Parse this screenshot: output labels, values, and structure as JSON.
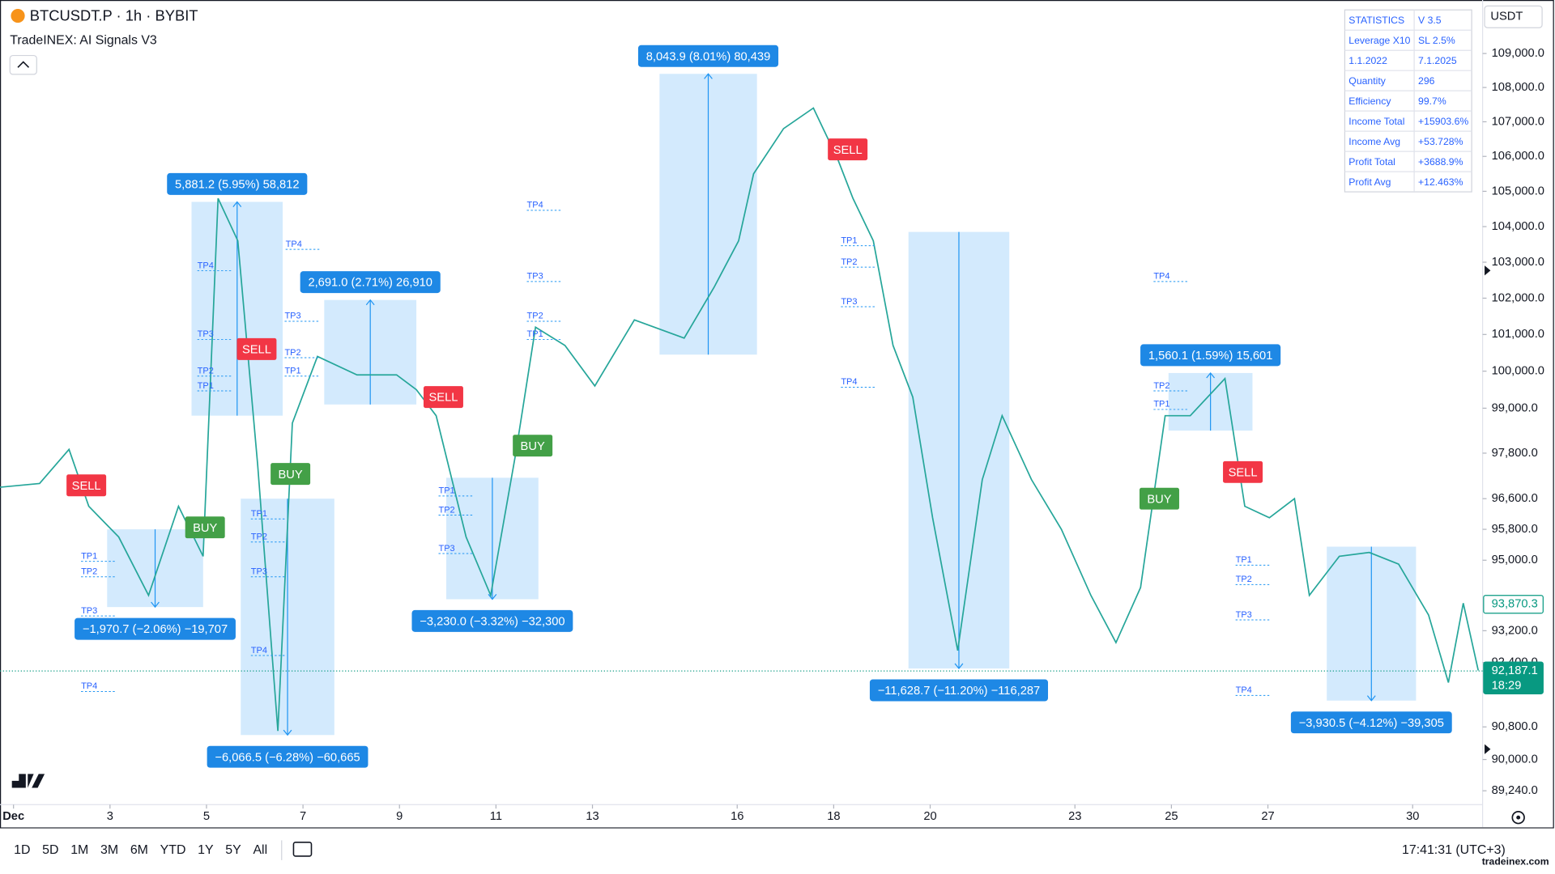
{
  "header": {
    "symbol": "BTCUSDT.P · 1h · BYBIT",
    "indicator": "TradeINEX: AI Signals V3",
    "currency": "USDT"
  },
  "stats": {
    "rows": [
      [
        "STATISTICS",
        "V 3.5"
      ],
      [
        "Leverage X10",
        "SL 2.5%"
      ],
      [
        "1.1.2022",
        "7.1.2025"
      ],
      [
        "Quantity",
        "296"
      ],
      [
        "Efficiency",
        "99.7%"
      ],
      [
        "Income Total",
        "+15903.6%"
      ],
      [
        "Income Avg",
        "+53.728%"
      ],
      [
        "Profit Total",
        "+3688.9%"
      ],
      [
        "Profit Avg",
        "+12.463%"
      ]
    ]
  },
  "toolbar": {
    "timeframes": [
      "1D",
      "5D",
      "1M",
      "3M",
      "6M",
      "YTD",
      "1Y",
      "5Y",
      "All"
    ],
    "clock": "17:41:31 (UTC+3)",
    "watermark": "tradeinex.com"
  },
  "chart_data": {
    "type": "line",
    "log_scale": true,
    "grid": false,
    "xlim": [
      0.72,
      31.45
    ],
    "ylim": [
      88905,
      110594
    ],
    "xticks": [
      {
        "value": 1,
        "label": "Dec"
      },
      3,
      5,
      7,
      9,
      11,
      13,
      16,
      18,
      20,
      23,
      25,
      27,
      30
    ],
    "yticks": [
      {
        "value": 109000,
        "label": "109,000.0"
      },
      {
        "value": 108000,
        "label": "108,000.0"
      },
      {
        "value": 107000,
        "label": "107,000.0"
      },
      {
        "value": 106000,
        "label": "106,000.0"
      },
      {
        "value": 105000,
        "label": "105,000.0"
      },
      {
        "value": 104000,
        "label": "104,000.0"
      },
      {
        "value": 103000,
        "label": "103,000.0"
      },
      {
        "value": 102000,
        "label": "102,000.0"
      },
      {
        "value": 101000,
        "label": "101,000.0"
      },
      {
        "value": 100000,
        "label": "100,000.0"
      },
      {
        "value": 99000,
        "label": "99,000.0"
      },
      {
        "value": 97800,
        "label": "97,800.0"
      },
      {
        "value": 96600,
        "label": "96,600.0"
      },
      {
        "value": 95800,
        "label": "95,800.0"
      },
      {
        "value": 95000,
        "label": "95,000.0"
      },
      {
        "value": 93200,
        "label": "93,200.0"
      },
      {
        "value": 92400,
        "label": "92,400.0"
      },
      {
        "value": 90800,
        "label": "90,800.0"
      },
      {
        "value": 90000,
        "label": "90,000.0"
      },
      {
        "value": 89240,
        "label": "89,240.0"
      }
    ],
    "x": [
      0.72,
      1.54,
      2.15,
      2.56,
      3.18,
      3.8,
      4.42,
      4.93,
      5.24,
      5.65,
      6.06,
      6.48,
      6.78,
      7.3,
      8.12,
      8.94,
      9.35,
      9.76,
      10.38,
      10.89,
      11.41,
      11.82,
      12.43,
      13.05,
      13.87,
      14.9,
      15.52,
      16.03,
      16.34,
      16.96,
      17.58,
      18.09,
      18.4,
      18.82,
      19.23,
      19.64,
      20.05,
      20.57,
      21.08,
      21.49,
      22.1,
      22.72,
      23.33,
      23.85,
      24.36,
      24.87,
      25.39,
      26.11,
      26.52,
      27.03,
      27.55,
      27.86,
      28.48,
      29.1,
      29.71,
      30.33,
      30.74,
      31.05,
      31.36
    ],
    "series": [
      {
        "color": "#26a69a",
        "values": [
          96900,
          97000,
          97900,
          96400,
          95600,
          94100,
          96400,
          95100,
          104800,
          103600,
          97500,
          90700,
          98600,
          100400,
          99900,
          99900,
          99500,
          98800,
          95600,
          94100,
          97800,
          101200,
          100700,
          99600,
          101400,
          100900,
          102300,
          103600,
          105500,
          106800,
          107400,
          105900,
          104800,
          103600,
          100700,
          99300,
          96100,
          92700,
          97100,
          98800,
          97100,
          95800,
          94100,
          92900,
          94300,
          98800,
          98800,
          99800,
          96400,
          96100,
          96600,
          94100,
          95100,
          95200,
          94900,
          93600,
          91900,
          93900,
          92200
        ]
      }
    ],
    "measures": [
      {
        "label": "5,881.2 (5.95%) 58,812",
        "x1": 4.69,
        "x2": 6.58,
        "from": 98800,
        "to": 104700
      },
      {
        "label": "2,691.0 (2.71%) 26,910",
        "x1": 7.44,
        "x2": 9.35,
        "from": 99100,
        "to": 101950
      },
      {
        "label": "8,043.9 (8.01%) 80,439",
        "x1": 14.39,
        "x2": 16.41,
        "from": 100450,
        "to": 108400
      },
      {
        "label": "1,560.1 (1.59%) 15,601",
        "x1": 24.94,
        "x2": 26.68,
        "from": 98400,
        "to": 99950
      },
      {
        "label": "−1,970.7 (−2.06%) −19,707",
        "x1": 2.94,
        "x2": 4.93,
        "from": 95800,
        "to": 93800
      },
      {
        "label": "−6,066.5 (−6.28%) −60,665",
        "x1": 5.71,
        "x2": 7.65,
        "from": 96600,
        "to": 90600
      },
      {
        "label": "−3,230.0 (−3.32%) −32,300",
        "x1": 9.97,
        "x2": 11.88,
        "from": 97150,
        "to": 94000
      },
      {
        "label": "−11,628.7 (−11.20%) −116,287",
        "x1": 19.55,
        "x2": 21.64,
        "from": 103850,
        "to": 92250
      },
      {
        "label": "−3,930.5 (−4.12%) −39,305",
        "x1": 28.22,
        "x2": 30.07,
        "from": 95350,
        "to": 91450
      }
    ],
    "signals": [
      {
        "label": "SELL",
        "x": 2.51,
        "price": 96950,
        "color": "#f23645"
      },
      {
        "label": "BUY",
        "x": 4.97,
        "price": 95850,
        "color": "#43a047"
      },
      {
        "label": "SELL",
        "x": 6.04,
        "price": 100600,
        "color": "#f23645"
      },
      {
        "label": "BUY",
        "x": 6.74,
        "price": 97250,
        "color": "#43a047"
      },
      {
        "label": "SELL",
        "x": 9.91,
        "price": 99300,
        "color": "#f23645"
      },
      {
        "label": "BUY",
        "x": 11.76,
        "price": 98000,
        "color": "#43a047"
      },
      {
        "label": "SELL",
        "x": 18.29,
        "price": 106200,
        "color": "#f23645"
      },
      {
        "label": "BUY",
        "x": 24.75,
        "price": 96600,
        "color": "#43a047"
      },
      {
        "label": "SELL",
        "x": 26.48,
        "price": 97300,
        "color": "#f23645"
      }
    ],
    "tp_labels": [
      {
        "label": "TP4",
        "x": 11.64,
        "price": 104600
      },
      {
        "label": "TP4",
        "x": 6.64,
        "price": 103500
      },
      {
        "label": "TP4",
        "x": 4.81,
        "price": 102900
      },
      {
        "label": "TP3",
        "x": 4.81,
        "price": 101000
      },
      {
        "label": "TP2",
        "x": 4.81,
        "price": 100000
      },
      {
        "label": "TP1",
        "x": 4.81,
        "price": 99600
      },
      {
        "label": "TP3",
        "x": 6.62,
        "price": 101500
      },
      {
        "label": "TP2",
        "x": 6.62,
        "price": 100500
      },
      {
        "label": "TP1",
        "x": 6.62,
        "price": 100000
      },
      {
        "label": "TP3",
        "x": 11.64,
        "price": 102600
      },
      {
        "label": "TP2",
        "x": 11.64,
        "price": 101500
      },
      {
        "label": "TP1",
        "x": 11.64,
        "price": 101000
      },
      {
        "label": "TP4",
        "x": 24.63,
        "price": 102600
      },
      {
        "label": "TP2",
        "x": 24.63,
        "price": 99600
      },
      {
        "label": "TP1",
        "x": 24.63,
        "price": 99100
      },
      {
        "label": "TP1",
        "x": 18.15,
        "price": 103600
      },
      {
        "label": "TP2",
        "x": 18.15,
        "price": 103000
      },
      {
        "label": "TP3",
        "x": 18.15,
        "price": 101900
      },
      {
        "label": "TP4",
        "x": 18.15,
        "price": 99700
      },
      {
        "label": "TP1",
        "x": 2.4,
        "price": 95100
      },
      {
        "label": "TP2",
        "x": 2.4,
        "price": 94700
      },
      {
        "label": "TP3",
        "x": 2.4,
        "price": 93700
      },
      {
        "label": "TP4",
        "x": 2.4,
        "price": 91800
      },
      {
        "label": "TP1",
        "x": 5.92,
        "price": 96200
      },
      {
        "label": "TP2",
        "x": 5.92,
        "price": 95600
      },
      {
        "label": "TP3",
        "x": 5.92,
        "price": 94700
      },
      {
        "label": "TP4",
        "x": 5.92,
        "price": 92700
      },
      {
        "label": "TP1",
        "x": 9.81,
        "price": 96800
      },
      {
        "label": "TP2",
        "x": 9.81,
        "price": 96300
      },
      {
        "label": "TP3",
        "x": 9.81,
        "price": 95300
      },
      {
        "label": "TP1",
        "x": 26.33,
        "price": 95000
      },
      {
        "label": "TP2",
        "x": 26.33,
        "price": 94500
      },
      {
        "label": "TP3",
        "x": 26.33,
        "price": 93600
      },
      {
        "label": "TP4",
        "x": 26.33,
        "price": 91700
      }
    ],
    "price_lines": [
      {
        "value": 93870.3,
        "label": "93,870.3",
        "color": "#089981",
        "filled": false
      },
      {
        "value": 92187.1,
        "label": "92,187.1",
        "countdown": "18:29",
        "color": "#089981",
        "filled": true
      }
    ]
  }
}
